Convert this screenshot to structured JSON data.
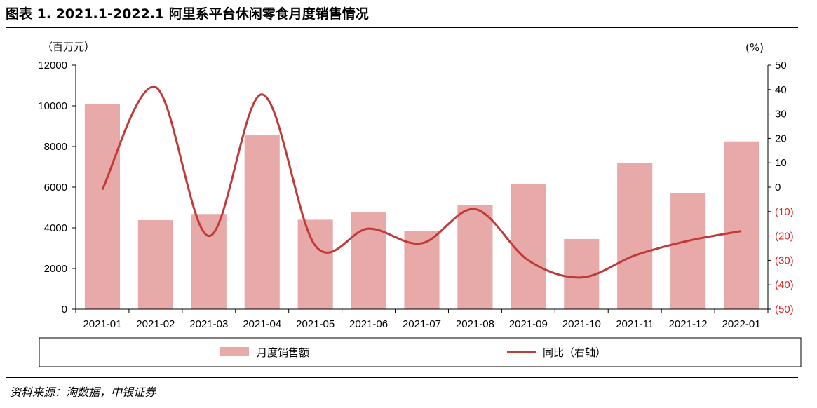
{
  "title": "图表 1. 2021.1-2022.1 阿里系平台休闲零食月度销售情况",
  "source": "资料来源：淘数据，中银证券",
  "colors": {
    "bar": "#E8A9A9",
    "line": "#C03A3A",
    "negative_tick": "#E02020",
    "axis": "#000000"
  },
  "chart_data": {
    "type": "bar+line",
    "categories": [
      "2021-01",
      "2021-02",
      "2021-03",
      "2021-04",
      "2021-05",
      "2021-06",
      "2021-07",
      "2021-08",
      "2021-09",
      "2021-10",
      "2021-11",
      "2021-12",
      "2022-01"
    ],
    "series": [
      {
        "name": "月度销售额",
        "type": "bar",
        "axis": "left",
        "values": [
          10100,
          4380,
          4680,
          8550,
          4400,
          4780,
          3850,
          5130,
          6150,
          3450,
          7200,
          5700,
          8250
        ]
      },
      {
        "name": "同比（右轴）",
        "type": "line",
        "axis": "right",
        "values": [
          -1,
          41,
          -20,
          38,
          -24,
          -17,
          -23,
          -9,
          -30,
          -37,
          -28,
          -22,
          -18
        ]
      }
    ],
    "left_axis": {
      "unit": "（百万元）",
      "ylim": [
        0,
        12000
      ],
      "ticks": [
        0,
        2000,
        4000,
        6000,
        8000,
        10000,
        12000
      ],
      "tick_labels": [
        "0",
        "2000",
        "4000",
        "6000",
        "8000",
        "10000",
        "12000"
      ]
    },
    "right_axis": {
      "unit": "(%)",
      "ylim": [
        -50,
        50
      ],
      "ticks": [
        -50,
        -40,
        -30,
        -20,
        -10,
        0,
        10,
        20,
        30,
        40,
        50
      ],
      "tick_labels": [
        "(50)",
        "(40)",
        "(30)",
        "(20)",
        "(10)",
        "0",
        "10",
        "20",
        "30",
        "40",
        "50"
      ]
    },
    "grid": false,
    "legend": {
      "position": "bottom",
      "items": [
        {
          "label": "月度销售额",
          "kind": "bar"
        },
        {
          "label": "同比（右轴）",
          "kind": "line"
        }
      ]
    }
  }
}
